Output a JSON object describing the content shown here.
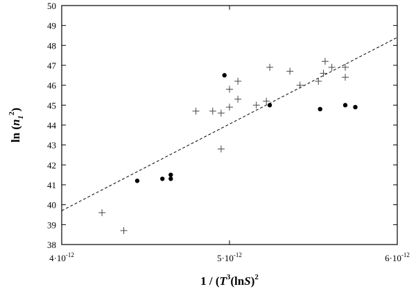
{
  "chart_data": {
    "type": "scatter",
    "title": "",
    "xlabel": "1 / (T3(lnS)2)",
    "ylabel": "ln (n12)",
    "xlim": [
      4e-12,
      6e-12
    ],
    "ylim": [
      38,
      50
    ],
    "x_ticks": [
      {
        "value": 4e-12,
        "mantissa": "4",
        "exponent": "-12"
      },
      {
        "value": 5e-12,
        "mantissa": "5",
        "exponent": "-12"
      },
      {
        "value": 6e-12,
        "mantissa": "6",
        "exponent": "-12"
      }
    ],
    "y_ticks": [
      38,
      39,
      40,
      41,
      42,
      43,
      44,
      45,
      46,
      47,
      48,
      49,
      50
    ],
    "grid": false,
    "legend": "none",
    "series": [
      {
        "marker": "plus",
        "points": [
          [
            4.24e-12,
            39.6
          ],
          [
            4.37e-12,
            38.7
          ],
          [
            4.8e-12,
            44.7
          ],
          [
            4.9e-12,
            44.7
          ],
          [
            4.95e-12,
            44.6
          ],
          [
            4.95e-12,
            42.8
          ],
          [
            5e-12,
            45.8
          ],
          [
            5e-12,
            44.9
          ],
          [
            5.05e-12,
            46.2
          ],
          [
            5.05e-12,
            45.3
          ],
          [
            5.16e-12,
            45.0
          ],
          [
            5.22e-12,
            45.2
          ],
          [
            5.24e-12,
            46.9
          ],
          [
            5.36e-12,
            46.7
          ],
          [
            5.42e-12,
            46.0
          ],
          [
            5.53e-12,
            46.2
          ],
          [
            5.56e-12,
            46.6
          ],
          [
            5.57e-12,
            47.2
          ],
          [
            5.61e-12,
            46.9
          ],
          [
            5.69e-12,
            46.9
          ],
          [
            5.69e-12,
            46.4
          ]
        ]
      },
      {
        "marker": "dot",
        "points": [
          [
            4.45e-12,
            41.2
          ],
          [
            4.6e-12,
            41.3
          ],
          [
            4.65e-12,
            41.3
          ],
          [
            4.65e-12,
            41.5
          ],
          [
            4.97e-12,
            46.5
          ],
          [
            5.24e-12,
            45.0
          ],
          [
            5.54e-12,
            44.8
          ],
          [
            5.69e-12,
            45.0
          ],
          [
            5.75e-12,
            44.9
          ]
        ]
      }
    ],
    "fit_line": {
      "style": "dashed",
      "points": [
        [
          4e-12,
          39.7
        ],
        [
          6e-12,
          48.4
        ]
      ]
    }
  }
}
